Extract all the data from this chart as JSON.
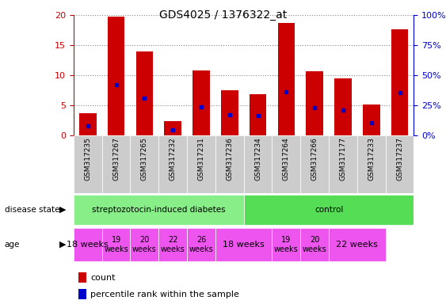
{
  "title": "GDS4025 / 1376322_at",
  "samples": [
    "GSM317235",
    "GSM317267",
    "GSM317265",
    "GSM317232",
    "GSM317231",
    "GSM317236",
    "GSM317234",
    "GSM317264",
    "GSM317266",
    "GSM317177",
    "GSM317233",
    "GSM317237"
  ],
  "counts": [
    3.7,
    19.7,
    14.0,
    2.4,
    10.8,
    7.5,
    6.9,
    18.7,
    10.6,
    9.5,
    5.1,
    17.6
  ],
  "percentiles": [
    8.0,
    42.0,
    31.0,
    4.5,
    23.5,
    17.0,
    16.5,
    36.5,
    23.0,
    21.0,
    10.5,
    35.5
  ],
  "ylim_left": [
    0,
    20
  ],
  "ylim_right": [
    0,
    100
  ],
  "yticks_left": [
    0,
    5,
    10,
    15,
    20
  ],
  "yticks_right": [
    0,
    25,
    50,
    75,
    100
  ],
  "bar_color": "#cc0000",
  "dot_color": "#0000cc",
  "disease_state_diabetes_label": "streptozotocin-induced diabetes",
  "disease_state_control_label": "control",
  "disease_state_diabetes_color": "#88ee88",
  "disease_state_control_color": "#55dd55",
  "age_color": "#ee55ee",
  "label_count": "count",
  "label_percentile": "percentile rank within the sample",
  "axis_color_left": "#cc0000",
  "axis_color_right": "#0000cc",
  "background_color": "#ffffff",
  "tick_bg": "#cccccc",
  "n_diabetes": 6,
  "n_control": 6,
  "age_spans": [
    {
      "start": 0,
      "end": 1,
      "label": "18 weeks",
      "fontsize": 8
    },
    {
      "start": 1,
      "end": 2,
      "label": "19\nweeks",
      "fontsize": 7
    },
    {
      "start": 2,
      "end": 3,
      "label": "20\nweeks",
      "fontsize": 7
    },
    {
      "start": 3,
      "end": 4,
      "label": "22\nweeks",
      "fontsize": 7
    },
    {
      "start": 4,
      "end": 5,
      "label": "26\nweeks",
      "fontsize": 7
    },
    {
      "start": 5,
      "end": 7,
      "label": "18 weeks",
      "fontsize": 8
    },
    {
      "start": 7,
      "end": 8,
      "label": "19\nweeks",
      "fontsize": 7
    },
    {
      "start": 8,
      "end": 9,
      "label": "20\nweeks",
      "fontsize": 7
    },
    {
      "start": 9,
      "end": 11,
      "label": "22 weeks",
      "fontsize": 8
    }
  ]
}
